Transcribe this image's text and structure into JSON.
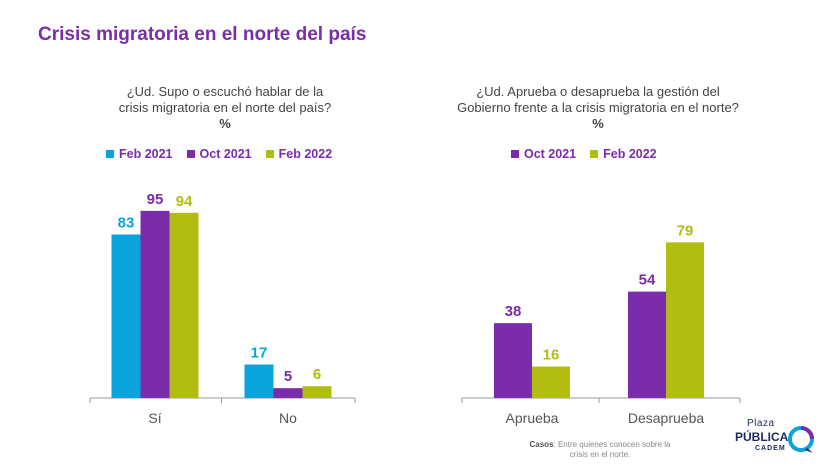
{
  "page": {
    "title": "Crisis migratoria en el norte del país",
    "footnote_bold": "Casos",
    "footnote_text": ": Entre quienes conocen sobre la crisis en el norte.",
    "logo_line1": "Plaza",
    "logo_line2": "PÚBLICA",
    "logo_line3": "CADEM"
  },
  "colors": {
    "Feb 2021": "#0aa3dc",
    "Oct 2021": "#7b2cab",
    "Feb 2022": "#b2bd12",
    "title": "#7b2cab"
  },
  "chart_data": [
    {
      "type": "bar",
      "title": "¿Ud. Supo o escuchó hablar de la crisis migratoria en el norte del país?",
      "title_line1": "¿Ud. Supo o escuchó hablar de la",
      "title_line2": "crisis migratoria en el norte del país?",
      "unit": "%",
      "categories": [
        "Sí",
        "No"
      ],
      "series": [
        {
          "name": "Feb 2021",
          "values": [
            83,
            17
          ]
        },
        {
          "name": "Oct 2021",
          "values": [
            95,
            5
          ]
        },
        {
          "name": "Feb 2022",
          "values": [
            94,
            6
          ]
        }
      ],
      "ylim": [
        0,
        100
      ],
      "grid": false,
      "legend": "top"
    },
    {
      "type": "bar",
      "title": "¿Ud. Aprueba o desaprueba la gestión del Gobierno frente a la crisis migratoria en el norte?",
      "title_line1": "¿Ud. Aprueba o desaprueba la gestión del",
      "title_line2": "Gobierno frente a la crisis migratoria en el norte?",
      "unit": "%",
      "categories": [
        "Aprueba",
        "Desaprueba"
      ],
      "series": [
        {
          "name": "Oct 2021",
          "values": [
            38,
            54
          ]
        },
        {
          "name": "Feb 2022",
          "values": [
            16,
            79
          ]
        }
      ],
      "ylim": [
        0,
        100
      ],
      "grid": false,
      "legend": "top"
    }
  ]
}
